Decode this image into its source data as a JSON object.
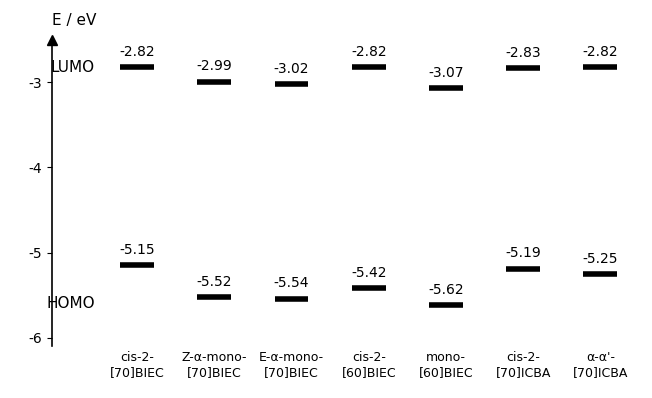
{
  "chart_data": {
    "type": "energy_levels",
    "y_label": "E / eV",
    "categories": [
      "cis-2-\n[70]BIEC",
      "Z-α-mono-\n[70]BIEC",
      "E-α-mono-\n[70]BIEC",
      "cis-2-\n[60]BIEC",
      "mono-\n[60]BIEC",
      "cis-2-\n[70]ICBA",
      "α-α'-\n[70]ICBA"
    ],
    "series": [
      {
        "name": "LUMO",
        "color": "#000000",
        "values": [
          -2.82,
          -2.99,
          -3.02,
          -2.82,
          -3.07,
          -2.83,
          -2.82
        ]
      },
      {
        "name": "HOMO",
        "color": "#000000",
        "values": [
          -5.15,
          -5.52,
          -5.54,
          -5.42,
          -5.62,
          -5.19,
          -5.25
        ]
      }
    ],
    "ylim": [
      -6.1,
      -2.5
    ],
    "yticks": [
      -3,
      -4,
      -5,
      -6
    ],
    "data_labels": true,
    "grid": false
  }
}
